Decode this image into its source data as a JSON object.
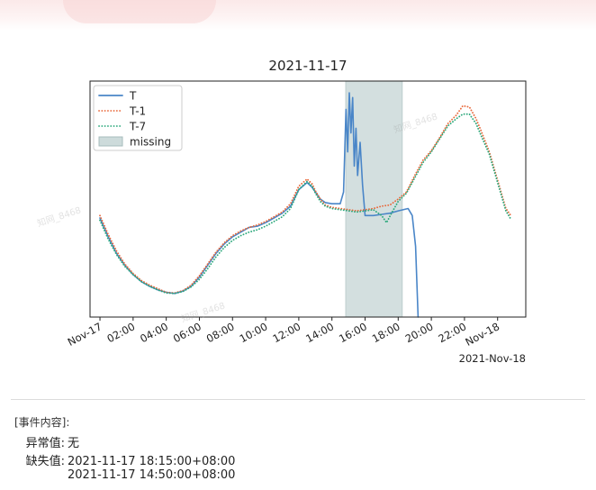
{
  "chart_data": {
    "type": "line",
    "title": "2021-11-17",
    "x_ticks": [
      "Nov-17",
      "02:00",
      "04:00",
      "06:00",
      "08:00",
      "10:00",
      "12:00",
      "14:00",
      "16:00",
      "18:00",
      "20:00",
      "22:00",
      "Nov-18"
    ],
    "x_offset_label": "2021-Nov-18",
    "xlim_hours": [
      -0.6,
      25.7
    ],
    "ylim": [
      0,
      1
    ],
    "legend_position": "top-left",
    "missing_span_hours": [
      14.83,
      18.25
    ],
    "series": [
      {
        "name": "T",
        "color": "#4a86c8",
        "style": "solid",
        "points": [
          [
            0,
            0.42
          ],
          [
            0.5,
            0.34
          ],
          [
            1,
            0.27
          ],
          [
            1.5,
            0.22
          ],
          [
            2,
            0.18
          ],
          [
            2.5,
            0.15
          ],
          [
            3,
            0.13
          ],
          [
            3.5,
            0.115
          ],
          [
            4,
            0.105
          ],
          [
            4.5,
            0.1
          ],
          [
            5,
            0.11
          ],
          [
            5.5,
            0.13
          ],
          [
            6,
            0.17
          ],
          [
            6.5,
            0.22
          ],
          [
            7,
            0.27
          ],
          [
            7.5,
            0.31
          ],
          [
            8,
            0.34
          ],
          [
            8.5,
            0.36
          ],
          [
            9,
            0.38
          ],
          [
            9.5,
            0.385
          ],
          [
            10,
            0.4
          ],
          [
            10.5,
            0.42
          ],
          [
            11,
            0.44
          ],
          [
            11.5,
            0.47
          ],
          [
            12,
            0.54
          ],
          [
            12.5,
            0.57
          ],
          [
            12.8,
            0.55
          ],
          [
            13,
            0.53
          ],
          [
            13.3,
            0.5
          ],
          [
            13.6,
            0.485
          ],
          [
            14,
            0.48
          ],
          [
            14.5,
            0.48
          ],
          [
            14.7,
            0.53
          ],
          [
            14.85,
            0.88
          ],
          [
            14.95,
            0.7
          ],
          [
            15.05,
            0.95
          ],
          [
            15.15,
            0.78
          ],
          [
            15.25,
            0.93
          ],
          [
            15.35,
            0.64
          ],
          [
            15.45,
            0.8
          ],
          [
            15.55,
            0.6
          ],
          [
            15.7,
            0.74
          ],
          [
            15.85,
            0.56
          ],
          [
            16.0,
            0.43
          ],
          [
            16.5,
            0.43
          ],
          [
            17,
            0.435
          ],
          [
            17.5,
            0.44
          ],
          [
            18,
            0.45
          ],
          [
            18.6,
            0.46
          ],
          [
            18.85,
            0.43
          ],
          [
            19.05,
            0.3
          ],
          [
            19.2,
            0.0
          ]
        ]
      },
      {
        "name": "T-1",
        "color": "#e8683a",
        "style": "dotted",
        "points": [
          [
            0,
            0.43
          ],
          [
            0.5,
            0.35
          ],
          [
            1,
            0.28
          ],
          [
            1.5,
            0.225
          ],
          [
            2,
            0.185
          ],
          [
            2.5,
            0.155
          ],
          [
            3,
            0.135
          ],
          [
            3.5,
            0.12
          ],
          [
            4,
            0.105
          ],
          [
            4.5,
            0.102
          ],
          [
            5,
            0.112
          ],
          [
            5.5,
            0.135
          ],
          [
            6,
            0.175
          ],
          [
            6.5,
            0.225
          ],
          [
            7,
            0.275
          ],
          [
            7.5,
            0.315
          ],
          [
            8,
            0.345
          ],
          [
            8.5,
            0.365
          ],
          [
            9,
            0.38
          ],
          [
            9.5,
            0.39
          ],
          [
            10,
            0.405
          ],
          [
            10.5,
            0.425
          ],
          [
            11,
            0.445
          ],
          [
            11.5,
            0.48
          ],
          [
            12,
            0.555
          ],
          [
            12.5,
            0.585
          ],
          [
            12.8,
            0.565
          ],
          [
            13,
            0.535
          ],
          [
            13.3,
            0.5
          ],
          [
            13.6,
            0.475
          ],
          [
            14,
            0.465
          ],
          [
            14.5,
            0.46
          ],
          [
            15,
            0.455
          ],
          [
            15.5,
            0.45
          ],
          [
            16,
            0.455
          ],
          [
            16.5,
            0.46
          ],
          [
            17,
            0.47
          ],
          [
            17.5,
            0.475
          ],
          [
            18,
            0.5
          ],
          [
            18.5,
            0.53
          ],
          [
            19,
            0.6
          ],
          [
            19.5,
            0.665
          ],
          [
            20,
            0.705
          ],
          [
            20.5,
            0.76
          ],
          [
            21,
            0.82
          ],
          [
            21.5,
            0.855
          ],
          [
            21.9,
            0.895
          ],
          [
            22.3,
            0.89
          ],
          [
            22.7,
            0.84
          ],
          [
            23,
            0.79
          ],
          [
            23.5,
            0.7
          ],
          [
            24,
            0.58
          ],
          [
            24.5,
            0.46
          ],
          [
            24.8,
            0.43
          ]
        ]
      },
      {
        "name": "T-7",
        "color": "#2aa87b",
        "style": "dotted",
        "points": [
          [
            0,
            0.41
          ],
          [
            0.5,
            0.33
          ],
          [
            1,
            0.265
          ],
          [
            1.5,
            0.215
          ],
          [
            2,
            0.18
          ],
          [
            2.5,
            0.15
          ],
          [
            3,
            0.13
          ],
          [
            3.5,
            0.115
          ],
          [
            4,
            0.102
          ],
          [
            4.5,
            0.1
          ],
          [
            5,
            0.108
          ],
          [
            5.5,
            0.128
          ],
          [
            6,
            0.16
          ],
          [
            6.5,
            0.205
          ],
          [
            7,
            0.255
          ],
          [
            7.5,
            0.295
          ],
          [
            8,
            0.325
          ],
          [
            8.5,
            0.345
          ],
          [
            9,
            0.36
          ],
          [
            9.5,
            0.37
          ],
          [
            10,
            0.385
          ],
          [
            10.5,
            0.405
          ],
          [
            11,
            0.425
          ],
          [
            11.5,
            0.46
          ],
          [
            12,
            0.54
          ],
          [
            12.5,
            0.575
          ],
          [
            12.8,
            0.555
          ],
          [
            13,
            0.525
          ],
          [
            13.3,
            0.49
          ],
          [
            13.6,
            0.47
          ],
          [
            14,
            0.46
          ],
          [
            14.5,
            0.455
          ],
          [
            15,
            0.45
          ],
          [
            15.5,
            0.445
          ],
          [
            16,
            0.45
          ],
          [
            16.5,
            0.455
          ],
          [
            17,
            0.43
          ],
          [
            17.3,
            0.4
          ],
          [
            17.6,
            0.44
          ],
          [
            18,
            0.49
          ],
          [
            18.5,
            0.525
          ],
          [
            19,
            0.59
          ],
          [
            19.5,
            0.655
          ],
          [
            20,
            0.7
          ],
          [
            20.5,
            0.755
          ],
          [
            21,
            0.81
          ],
          [
            21.5,
            0.84
          ],
          [
            21.9,
            0.86
          ],
          [
            22.3,
            0.86
          ],
          [
            22.7,
            0.82
          ],
          [
            23,
            0.77
          ],
          [
            23.5,
            0.69
          ],
          [
            24,
            0.57
          ],
          [
            24.5,
            0.45
          ],
          [
            24.8,
            0.415
          ]
        ]
      }
    ],
    "legend": [
      {
        "label": "T",
        "kind": "solid",
        "color": "#4a86c8"
      },
      {
        "label": "T-1",
        "kind": "dotted",
        "color": "#e8683a"
      },
      {
        "label": "T-7",
        "kind": "dotted",
        "color": "#2aa87b"
      },
      {
        "label": "missing",
        "kind": "patch",
        "color": "#b8cccc"
      }
    ]
  },
  "event": {
    "heading": "[事件内容]:",
    "anomaly_label": "异常值:",
    "anomaly_value": "无",
    "missing_label": "缺失值:",
    "missing_values": [
      "2021-11-17 18:15:00+08:00",
      "2021-11-17 14:50:00+08:00"
    ]
  },
  "watermarks": [
    "知网_8468",
    "知网_8468",
    "知网_8468"
  ]
}
